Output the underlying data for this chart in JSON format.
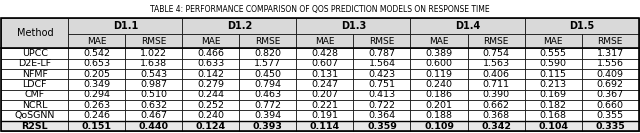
{
  "title": "TABLE 4: PERFORMANCE COMPARISON OF QOS PREDICTION MODELS ON RESPONSE TIME",
  "header_groups": [
    "D1.1",
    "D1.2",
    "D1.3",
    "D1.4",
    "D1.5"
  ],
  "subheaders": [
    "MAE",
    "RMSE"
  ],
  "methods": [
    "UPCC",
    "D2E-LF",
    "NFMF",
    "LDCF",
    "CMF",
    "NCRL",
    "QoSGNN",
    "R2SL"
  ],
  "bold_row": "R2SL",
  "data": {
    "UPCC": [
      0.542,
      1.022,
      0.466,
      0.82,
      0.428,
      0.787,
      0.389,
      0.754,
      0.555,
      1.317
    ],
    "D2E-LF": [
      0.653,
      1.638,
      0.633,
      1.577,
      0.607,
      1.564,
      0.6,
      1.563,
      0.59,
      1.556
    ],
    "NFMF": [
      0.205,
      0.543,
      0.142,
      0.45,
      0.131,
      0.423,
      0.119,
      0.406,
      0.115,
      0.409
    ],
    "LDCF": [
      0.349,
      0.987,
      0.279,
      0.794,
      0.247,
      0.751,
      0.24,
      0.711,
      0.213,
      0.692
    ],
    "CMF": [
      0.294,
      0.51,
      0.244,
      0.463,
      0.207,
      0.413,
      0.186,
      0.39,
      0.169,
      0.367
    ],
    "NCRL": [
      0.263,
      0.632,
      0.252,
      0.772,
      0.221,
      0.722,
      0.201,
      0.662,
      0.182,
      0.66
    ],
    "QoSGNN": [
      0.246,
      0.467,
      0.24,
      0.394,
      0.191,
      0.364,
      0.188,
      0.368,
      0.168,
      0.355
    ],
    "R2SL": [
      0.151,
      0.44,
      0.124,
      0.393,
      0.114,
      0.359,
      0.109,
      0.342,
      0.104,
      0.335
    ]
  },
  "bg_header": "#d9d9d9",
  "bg_white": "#ffffff",
  "bg_last_row": "#e8e8e8",
  "font_size_title": 5.5,
  "font_size_header": 7,
  "font_size_data": 6.8
}
